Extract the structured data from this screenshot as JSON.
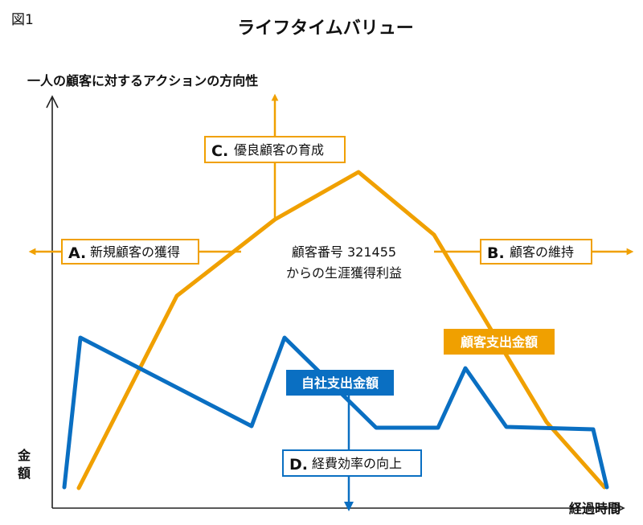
{
  "figure": {
    "label": "図1",
    "title": "ライフタイムバリュー"
  },
  "axes": {
    "y_label": "一人の顧客に対するアクションの方向性",
    "y_unit_label_line1": "金",
    "y_unit_label_line2": "額",
    "x_label": "経過時間"
  },
  "actions": {
    "a_letter": "A.",
    "a_text": "新規顧客の獲得",
    "b_letter": "B.",
    "b_text": "顧客の維持",
    "c_letter": "C.",
    "c_text": "優良顧客の育成",
    "d_letter": "D.",
    "d_text": "経費効率の向上"
  },
  "center_note": {
    "line1": "顧客番号 321455",
    "line2": "からの生涯獲得利益"
  },
  "series": {
    "customer_spend": {
      "name": "顧客支出金額",
      "color": "#f0a000"
    },
    "company_spend": {
      "name": "自社支出金額",
      "color": "#0a6fc2"
    }
  },
  "colors": {
    "orange": "#f0a000",
    "blue": "#0a6fc2",
    "axis": "#222222"
  }
}
